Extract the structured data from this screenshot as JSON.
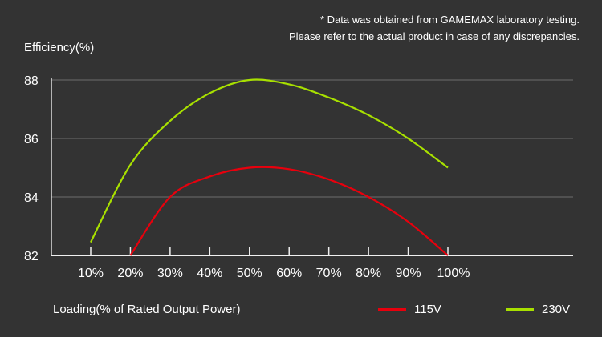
{
  "chart_data": {
    "type": "line",
    "note_lines": [
      "* Data was obtained from GAMEMAX laboratory testing.",
      "Please refer to the actual product in case of any discrepancies."
    ],
    "ylabel": "Efficiency(%)",
    "xlabel": "Loading(% of Rated Output Power)",
    "ylim": [
      82,
      88
    ],
    "yticks": [
      82,
      84,
      86,
      88
    ],
    "x": [
      10,
      20,
      30,
      40,
      50,
      60,
      70,
      80,
      90,
      100
    ],
    "xtick_labels": [
      "10%",
      "20%",
      "30%",
      "40%",
      "50%",
      "60%",
      "70%",
      "80%",
      "90%",
      "100%"
    ],
    "grid": true,
    "legend_position": "bottom-right",
    "series": [
      {
        "name": "115V",
        "color": "#e8000d",
        "x": [
          20,
          30,
          40,
          50,
          60,
          70,
          80,
          90,
          100
        ],
        "values": [
          82.0,
          84.0,
          84.7,
          85.0,
          84.95,
          84.6,
          84.0,
          83.15,
          82.0
        ]
      },
      {
        "name": "230V",
        "color": "#a8e000",
        "x": [
          10,
          20,
          30,
          40,
          50,
          60,
          70,
          80,
          90,
          100
        ],
        "values": [
          82.45,
          85.1,
          86.6,
          87.55,
          88.0,
          87.85,
          87.4,
          86.8,
          86.0,
          85.0
        ]
      }
    ]
  }
}
